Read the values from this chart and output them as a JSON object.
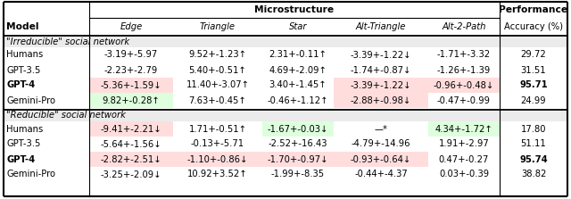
{
  "title_microstructure": "Microstructure",
  "title_performance": "Performance",
  "col_model": "Model",
  "col_edge": "Edge",
  "col_triangle": "Triangle",
  "col_star": "Star",
  "col_alt_triangle": "Alt-Triangle",
  "col_alt2path": "Alt-2-Path",
  "col_accuracy": "Accuracy (%)",
  "section1_label": "\"Irreducible\" social network",
  "section2_label": "\"Reducible\" social network",
  "rows_irr": [
    [
      "Humans",
      "-3.19+-5.97",
      "9.52+-1.23↑",
      "2.31+-0.11↑",
      "-3.39+-1.22↓",
      "-1.71+-3.32",
      "29.72"
    ],
    [
      "GPT-3.5",
      "-2.23+-2.79",
      "5.40+-0.51↑",
      "4.69+-2.09↑",
      "-1.74+-0.87↓",
      "-1.26+-1.39",
      "31.51"
    ],
    [
      "GPT-4",
      "-5.36+-1.59↓",
      "11.40+-3.07↑",
      "3.40+-1.45↑",
      "-3.39+-1.22↓",
      "-0.96+-0.48↓",
      "95.71"
    ],
    [
      "Gemini-Pro",
      "9.82+-0.28↑",
      "7.63+-0.45↑",
      "-0.46+-1.12↑",
      "-2.88+-0.98↓",
      "-0.47+-0.99",
      "24.99"
    ]
  ],
  "rows_red": [
    [
      "Humans",
      "-9.41+-2.21↓",
      "1.71+-0.51↑",
      "-1.67+-0.03↓",
      "—*",
      "4.34+-1.72↑",
      "17.80"
    ],
    [
      "GPT-3.5",
      "-5.64+-1.56↓",
      "-0.13+-5.71",
      "-2.52+-16.43",
      "-4.79+-14.96",
      "1.91+-2.97",
      "51.11"
    ],
    [
      "GPT-4",
      "-2.82+-2.51↓",
      "-1.10+-0.86↓",
      "-1.70+-0.97↓",
      "-0.93+-0.64↓",
      "0.47+-0.27",
      "95.74"
    ],
    [
      "Gemini-Pro",
      "-3.25+-2.09↓",
      "10.92+3.52↑",
      "-1.99+-8.35",
      "-0.44+-4.37",
      "0.03+-0.39",
      "38.82"
    ]
  ],
  "cell_colors_irr": [
    [
      "white",
      "white",
      "white",
      "white",
      "white",
      "white",
      "white"
    ],
    [
      "white",
      "white",
      "white",
      "white",
      "white",
      "white",
      "white"
    ],
    [
      "white",
      "#ffdddd",
      "white",
      "white",
      "#ffdddd",
      "#ffdddd",
      "white"
    ],
    [
      "white",
      "#ddffdd",
      "white",
      "white",
      "#ffdddd",
      "white",
      "white"
    ]
  ],
  "cell_colors_red": [
    [
      "white",
      "#ffdddd",
      "white",
      "#ddffdd",
      "white",
      "#ddffdd",
      "white"
    ],
    [
      "white",
      "white",
      "white",
      "white",
      "white",
      "white",
      "white"
    ],
    [
      "white",
      "#ffdddd",
      "#ffdddd",
      "#ffdddd",
      "#ffdddd",
      "white",
      "white"
    ],
    [
      "white",
      "white",
      "white",
      "white",
      "white",
      "white",
      "white"
    ]
  ],
  "bold_rows_irr": [
    2
  ],
  "bold_rows_red": [
    2
  ],
  "font_size": 7.2,
  "pink_color": "#ffdddd",
  "green_color": "#ddffdd"
}
